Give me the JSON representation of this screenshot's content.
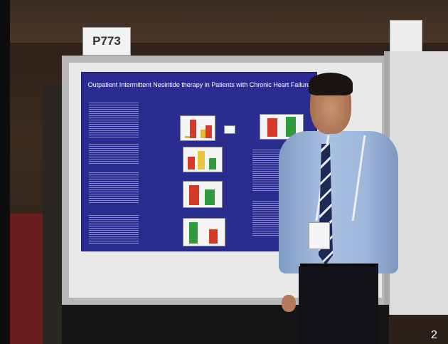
{
  "sign": {
    "label": "P773"
  },
  "poster": {
    "title": "Outpatient Intermittent Nesiritide therapy in Patients with Chronic Heart Failure",
    "background_color": "#2a2d8f"
  },
  "page_number": "2"
}
